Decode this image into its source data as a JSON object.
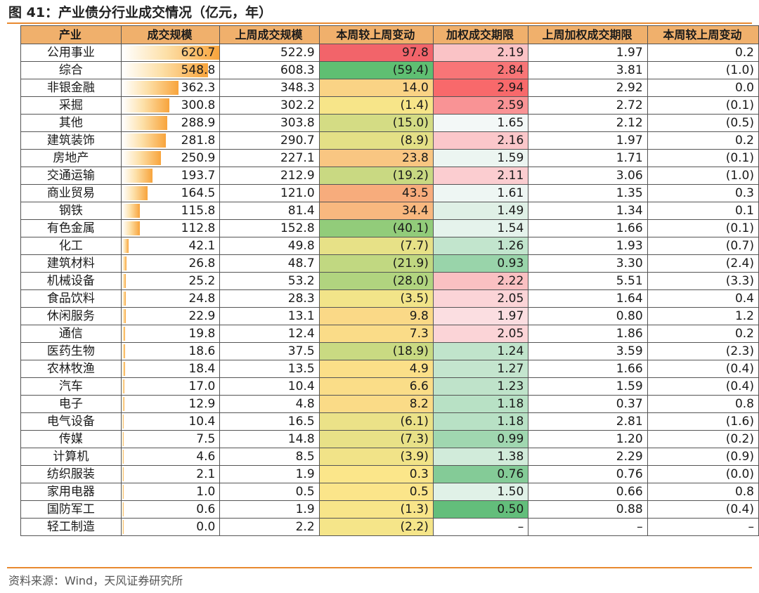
{
  "title": "图 41：产业债分行业成交情况（亿元，年）",
  "source": "资料来源：Wind，天风证券研究所",
  "headers": [
    "产业",
    "成交规模",
    "上周成交规模",
    "本周较上周变动",
    "加权成交期限",
    "上周加权成交期限",
    "本周较上周变动"
  ],
  "rows": [
    {
      "industry": "公用事业",
      "volume": "620.7",
      "prev_volume": "522.9",
      "volume_change": "97.8",
      "duration": "2.19",
      "prev_duration": "1.97",
      "duration_change": "0.2"
    },
    {
      "industry": "综合",
      "volume": "548.8",
      "prev_volume": "608.3",
      "volume_change": "(59.4)",
      "duration": "2.84",
      "prev_duration": "3.81",
      "duration_change": "(1.0)"
    },
    {
      "industry": "非银金融",
      "volume": "362.3",
      "prev_volume": "348.3",
      "volume_change": "14.0",
      "duration": "2.94",
      "prev_duration": "2.92",
      "duration_change": "0.0"
    },
    {
      "industry": "采掘",
      "volume": "300.8",
      "prev_volume": "302.2",
      "volume_change": "(1.4)",
      "duration": "2.59",
      "prev_duration": "2.72",
      "duration_change": "(0.1)"
    },
    {
      "industry": "其他",
      "volume": "288.9",
      "prev_volume": "303.8",
      "volume_change": "(15.0)",
      "duration": "1.65",
      "prev_duration": "2.12",
      "duration_change": "(0.5)"
    },
    {
      "industry": "建筑装饰",
      "volume": "281.8",
      "prev_volume": "290.7",
      "volume_change": "(8.9)",
      "duration": "2.16",
      "prev_duration": "1.97",
      "duration_change": "0.2"
    },
    {
      "industry": "房地产",
      "volume": "250.9",
      "prev_volume": "227.1",
      "volume_change": "23.8",
      "duration": "1.59",
      "prev_duration": "1.71",
      "duration_change": "(0.1)"
    },
    {
      "industry": "交通运输",
      "volume": "193.7",
      "prev_volume": "212.9",
      "volume_change": "(19.2)",
      "duration": "2.11",
      "prev_duration": "3.06",
      "duration_change": "(1.0)"
    },
    {
      "industry": "商业贸易",
      "volume": "164.5",
      "prev_volume": "121.0",
      "volume_change": "43.5",
      "duration": "1.61",
      "prev_duration": "1.35",
      "duration_change": "0.3"
    },
    {
      "industry": "钢铁",
      "volume": "115.8",
      "prev_volume": "81.4",
      "volume_change": "34.4",
      "duration": "1.49",
      "prev_duration": "1.34",
      "duration_change": "0.1"
    },
    {
      "industry": "有色金属",
      "volume": "112.8",
      "prev_volume": "152.8",
      "volume_change": "(40.1)",
      "duration": "1.54",
      "prev_duration": "1.66",
      "duration_change": "(0.1)"
    },
    {
      "industry": "化工",
      "volume": "42.1",
      "prev_volume": "49.8",
      "volume_change": "(7.7)",
      "duration": "1.26",
      "prev_duration": "1.93",
      "duration_change": "(0.7)"
    },
    {
      "industry": "建筑材料",
      "volume": "26.8",
      "prev_volume": "48.7",
      "volume_change": "(21.9)",
      "duration": "0.93",
      "prev_duration": "3.30",
      "duration_change": "(2.4)"
    },
    {
      "industry": "机械设备",
      "volume": "25.2",
      "prev_volume": "53.2",
      "volume_change": "(28.0)",
      "duration": "2.22",
      "prev_duration": "5.51",
      "duration_change": "(3.3)"
    },
    {
      "industry": "食品饮料",
      "volume": "24.8",
      "prev_volume": "28.3",
      "volume_change": "(3.5)",
      "duration": "2.05",
      "prev_duration": "1.64",
      "duration_change": "0.4"
    },
    {
      "industry": "休闲服务",
      "volume": "22.9",
      "prev_volume": "13.1",
      "volume_change": "9.8",
      "duration": "1.97",
      "prev_duration": "0.80",
      "duration_change": "1.2"
    },
    {
      "industry": "通信",
      "volume": "19.8",
      "prev_volume": "12.4",
      "volume_change": "7.3",
      "duration": "2.05",
      "prev_duration": "1.86",
      "duration_change": "0.2"
    },
    {
      "industry": "医药生物",
      "volume": "18.6",
      "prev_volume": "37.5",
      "volume_change": "(18.9)",
      "duration": "1.24",
      "prev_duration": "3.59",
      "duration_change": "(2.3)"
    },
    {
      "industry": "农林牧渔",
      "volume": "18.4",
      "prev_volume": "13.5",
      "volume_change": "4.9",
      "duration": "1.27",
      "prev_duration": "1.66",
      "duration_change": "(0.4)"
    },
    {
      "industry": "汽车",
      "volume": "17.0",
      "prev_volume": "10.4",
      "volume_change": "6.6",
      "duration": "1.23",
      "prev_duration": "1.59",
      "duration_change": "(0.4)"
    },
    {
      "industry": "电子",
      "volume": "12.9",
      "prev_volume": "4.8",
      "volume_change": "8.2",
      "duration": "1.18",
      "prev_duration": "0.37",
      "duration_change": "0.8"
    },
    {
      "industry": "电气设备",
      "volume": "10.4",
      "prev_volume": "16.5",
      "volume_change": "(6.1)",
      "duration": "1.18",
      "prev_duration": "2.81",
      "duration_change": "(1.6)"
    },
    {
      "industry": "传媒",
      "volume": "7.5",
      "prev_volume": "14.8",
      "volume_change": "(7.3)",
      "duration": "0.99",
      "prev_duration": "1.20",
      "duration_change": "(0.2)"
    },
    {
      "industry": "计算机",
      "volume": "4.6",
      "prev_volume": "8.5",
      "volume_change": "(3.9)",
      "duration": "1.38",
      "prev_duration": "2.29",
      "duration_change": "(0.9)"
    },
    {
      "industry": "纺织服装",
      "volume": "2.1",
      "prev_volume": "1.9",
      "volume_change": "0.3",
      "duration": "0.76",
      "prev_duration": "0.76",
      "duration_change": "(0.0)"
    },
    {
      "industry": "家用电器",
      "volume": "1.0",
      "prev_volume": "0.5",
      "volume_change": "0.5",
      "duration": "1.50",
      "prev_duration": "0.66",
      "duration_change": "0.8"
    },
    {
      "industry": "国防军工",
      "volume": "0.6",
      "prev_volume": "1.9",
      "volume_change": "(1.3)",
      "duration": "0.50",
      "prev_duration": "0.88",
      "duration_change": "(0.4)"
    },
    {
      "industry": "轻工制造",
      "volume": "0.0",
      "prev_volume": "2.2",
      "volume_change": "(2.2)",
      "duration": "–",
      "prev_duration": "–",
      "duration_change": "–"
    }
  ]
}
